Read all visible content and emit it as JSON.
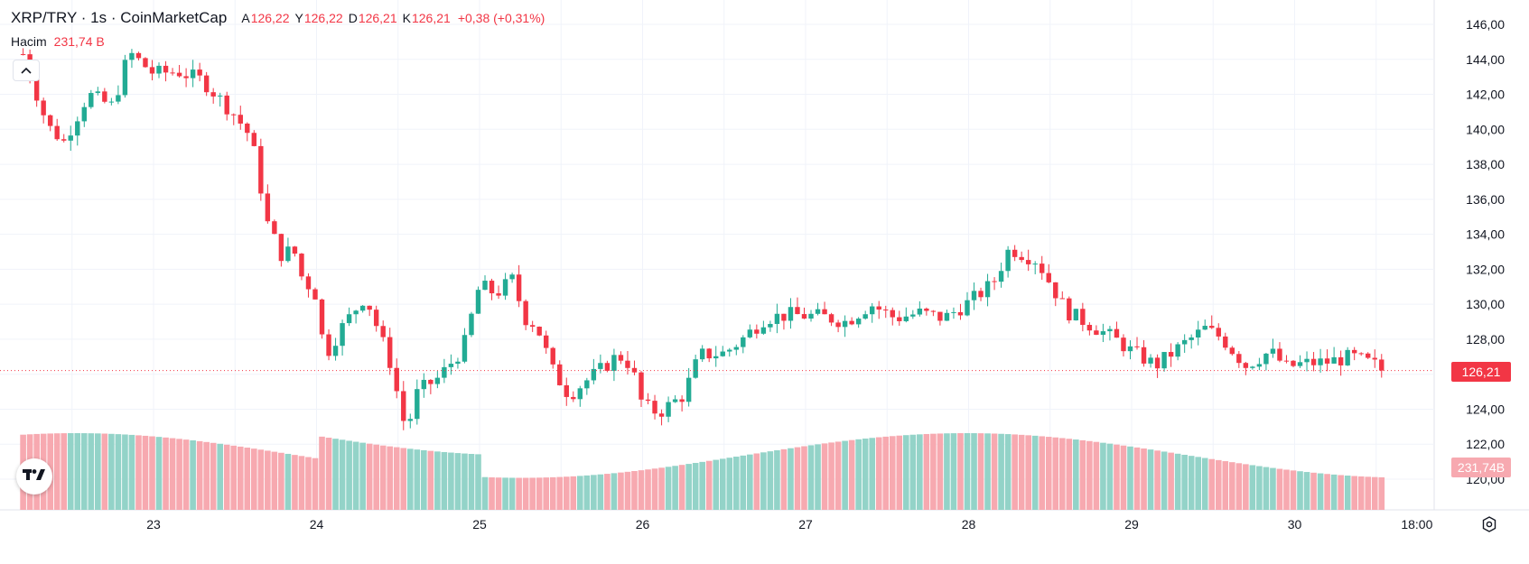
{
  "header": {
    "title": "XRP/TRY · 1s · CoinMarketCap",
    "open_key": "A",
    "open": "126,22",
    "high_key": "Y",
    "high": "126,22",
    "low_key": "D",
    "low": "126,21",
    "close_key": "K",
    "close": "126,21",
    "change": "+0,38 (+0,31%)"
  },
  "volume_legend": {
    "label": "Hacim",
    "value": "231,74 B"
  },
  "colors": {
    "up": "#22ab94",
    "down": "#f23645",
    "up_volume": "#93d3c8",
    "down_volume": "#f7a9b0",
    "grid": "#f0f3fa",
    "axis_text": "#131722"
  },
  "icons": {
    "collapse": "chevron-up-icon",
    "logo": "tradingview-logo-icon",
    "settings": "settings-gear-icon"
  },
  "chart_data": {
    "type": "candlestick",
    "symbol": "XRP/TRY",
    "interval": "1s",
    "y_axis": {
      "ticks": [
        "146,00",
        "144,00",
        "142,00",
        "140,00",
        "138,00",
        "136,00",
        "134,00",
        "132,00",
        "130,00",
        "128,00",
        "126,00",
        "124,00",
        "122,00",
        "120,00"
      ],
      "range": [
        119.5,
        146.6
      ]
    },
    "x_axis": {
      "ticks": [
        "23",
        "24",
        "25",
        "26",
        "27",
        "28",
        "29",
        "30",
        "18:00"
      ],
      "tick_positions_days": [
        23,
        24,
        25,
        26,
        27,
        28,
        29,
        30,
        30.75
      ]
    },
    "last_price_label": "126,21",
    "last_price": 126.21,
    "volume_label": "231,74B",
    "anchors": [
      [
        22.2,
        144.3
      ],
      [
        22.35,
        140.2
      ],
      [
        22.45,
        139.3
      ],
      [
        22.6,
        142.0
      ],
      [
        22.75,
        141.3
      ],
      [
        22.85,
        144.4
      ],
      [
        23.0,
        143.2
      ],
      [
        23.15,
        143.3
      ],
      [
        23.3,
        142.8
      ],
      [
        23.5,
        140.8
      ],
      [
        23.6,
        139.5
      ],
      [
        23.7,
        134.6
      ],
      [
        23.8,
        132.5
      ],
      [
        23.85,
        133.5
      ],
      [
        23.9,
        131.7
      ],
      [
        24.0,
        130.5
      ],
      [
        24.05,
        127.0
      ],
      [
        24.15,
        128.6
      ],
      [
        24.3,
        130.5
      ],
      [
        24.45,
        126.7
      ],
      [
        24.55,
        122.7
      ],
      [
        24.62,
        125.0
      ],
      [
        24.75,
        125.8
      ],
      [
        24.9,
        127.5
      ],
      [
        25.0,
        131.1
      ],
      [
        25.1,
        130.6
      ],
      [
        25.2,
        131.4
      ],
      [
        25.28,
        129.2
      ],
      [
        25.35,
        128.8
      ],
      [
        25.45,
        126.2
      ],
      [
        25.55,
        124.8
      ],
      [
        25.65,
        125.6
      ],
      [
        25.75,
        126.3
      ],
      [
        25.85,
        127.1
      ],
      [
        25.93,
        126.5
      ],
      [
        26.0,
        124.2
      ],
      [
        26.1,
        123.8
      ],
      [
        26.25,
        124.8
      ],
      [
        26.35,
        127.1
      ],
      [
        26.5,
        127.2
      ],
      [
        26.6,
        127.9
      ],
      [
        26.75,
        129.2
      ],
      [
        26.9,
        129.4
      ],
      [
        27.1,
        129.3
      ],
      [
        27.25,
        129.0
      ],
      [
        27.4,
        130.0
      ],
      [
        27.55,
        129.2
      ],
      [
        27.7,
        129.5
      ],
      [
        27.85,
        129.2
      ],
      [
        28.0,
        130.1
      ],
      [
        28.15,
        131.2
      ],
      [
        28.25,
        133.2
      ],
      [
        28.35,
        132.8
      ],
      [
        28.42,
        132.5
      ],
      [
        28.6,
        129.6
      ],
      [
        28.75,
        128.8
      ],
      [
        28.9,
        128.0
      ],
      [
        29.0,
        127.3
      ],
      [
        29.15,
        126.5
      ],
      [
        29.3,
        127.6
      ],
      [
        29.45,
        128.6
      ],
      [
        29.55,
        128.1
      ],
      [
        29.7,
        126.5
      ],
      [
        29.85,
        127.3
      ],
      [
        29.95,
        126.4
      ],
      [
        30.05,
        126.6
      ],
      [
        30.2,
        126.7
      ],
      [
        30.35,
        127.0
      ],
      [
        30.5,
        126.5
      ],
      [
        30.57,
        126.21
      ]
    ]
  }
}
